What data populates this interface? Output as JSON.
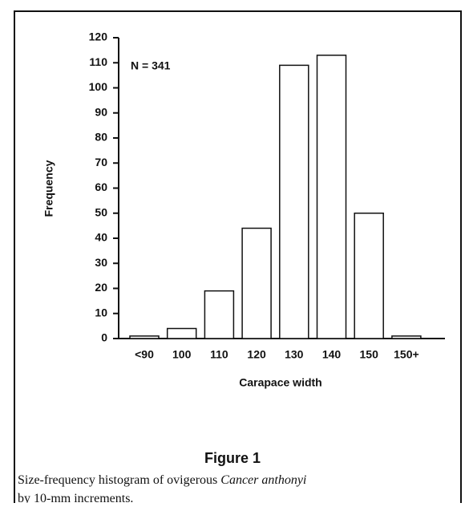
{
  "chart_data": {
    "type": "bar",
    "categories": [
      "<90",
      "100",
      "110",
      "120",
      "130",
      "140",
      "150",
      "150+"
    ],
    "values": [
      1,
      4,
      19,
      44,
      109,
      113,
      50,
      1
    ],
    "color": "#ffffff",
    "ylim": [
      0,
      120
    ],
    "yticks": [
      0,
      10,
      20,
      30,
      40,
      50,
      60,
      70,
      80,
      90,
      100,
      110,
      120
    ],
    "xlabel": "Carapace width",
    "ylabel": "Frequency",
    "annotation": "N = 341",
    "grid": false
  },
  "figure_label": "Figure 1",
  "caption_lines": [
    [
      "Size-frequency histogram of ovigerous ",
      "Cancer anthonyi"
    ],
    [
      "by 10-mm increments."
    ]
  ]
}
